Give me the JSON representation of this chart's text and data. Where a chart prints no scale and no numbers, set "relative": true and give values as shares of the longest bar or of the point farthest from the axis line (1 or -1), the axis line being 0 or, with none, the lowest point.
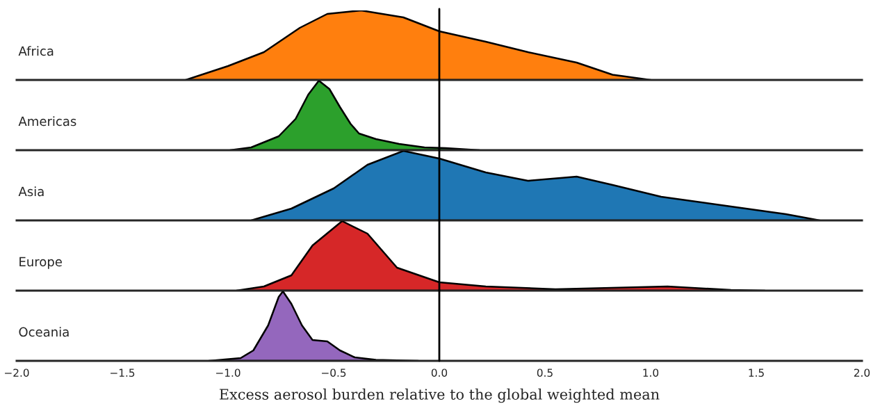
{
  "chart_data": [
    {
      "type": "area",
      "relative": true,
      "xlim": [
        -2,
        2
      ],
      "grid": false,
      "ref_lines": [
        {
          "axis": "x",
          "value": 0,
          "color": "#000000"
        }
      ],
      "series": [
        {
          "name": "Africa",
          "color": "#ff7f0e",
          "x": [
            -1.2,
            -1.0,
            -0.83,
            -0.66,
            -0.53,
            -0.37,
            -0.17,
            0,
            0.22,
            0.42,
            0.65,
            0.82,
            1.0
          ],
          "values": [
            0,
            0.2,
            0.4,
            0.75,
            0.95,
            1,
            0.9,
            0.7,
            0.55,
            0.4,
            0.25,
            0.075,
            0
          ]
        }
      ]
    },
    {
      "type": "area",
      "relative": true,
      "xlim": [
        -2,
        2
      ],
      "grid": false,
      "ref_lines": [
        {
          "axis": "x",
          "value": 0,
          "color": "#000000"
        }
      ],
      "series": [
        {
          "name": "Americas",
          "color": "#2ca02c",
          "x": [
            -0.99,
            -0.89,
            -0.76,
            -0.68,
            -0.62,
            -0.57,
            -0.52,
            -0.47,
            -0.42,
            -0.38,
            -0.3,
            -0.19,
            -0.07,
            0.03,
            0.19
          ],
          "values": [
            0,
            0.04,
            0.2,
            0.45,
            0.8,
            1,
            0.88,
            0.62,
            0.38,
            0.24,
            0.16,
            0.09,
            0.04,
            0.03,
            0
          ]
        }
      ]
    },
    {
      "type": "area",
      "relative": true,
      "xlim": [
        -2,
        2
      ],
      "grid": false,
      "ref_lines": [
        {
          "axis": "x",
          "value": 0,
          "color": "#000000"
        }
      ],
      "series": [
        {
          "name": "Asia",
          "color": "#1f77b4",
          "x": [
            -0.89,
            -0.7,
            -0.5,
            -0.34,
            -0.17,
            0,
            0.22,
            0.42,
            0.65,
            0.82,
            1.05,
            1.38,
            1.64,
            1.8
          ],
          "values": [
            0,
            0.17,
            0.46,
            0.8,
            1,
            0.89,
            0.69,
            0.57,
            0.63,
            0.51,
            0.34,
            0.2,
            0.09,
            0
          ]
        }
      ]
    },
    {
      "type": "area",
      "relative": true,
      "xlim": [
        -2,
        2
      ],
      "grid": false,
      "ref_lines": [
        {
          "axis": "x",
          "value": 0,
          "color": "#000000"
        }
      ],
      "series": [
        {
          "name": "Europe",
          "color": "#d62728",
          "x": [
            -0.96,
            -0.83,
            -0.7,
            -0.6,
            -0.46,
            -0.34,
            -0.2,
            0,
            0.22,
            0.55,
            1.08,
            1.38,
            1.54
          ],
          "values": [
            0,
            0.06,
            0.22,
            0.65,
            1,
            0.82,
            0.33,
            0.12,
            0.06,
            0.02,
            0.06,
            0.01,
            0
          ]
        }
      ]
    },
    {
      "type": "area",
      "relative": true,
      "xlim": [
        -2,
        2
      ],
      "grid": false,
      "xlabel": "Excess aerosol burden relative to the global weighted mean",
      "xticks": [
        {
          "value": -2,
          "label": "−2.0"
        },
        {
          "value": -1.5,
          "label": "−1.5"
        },
        {
          "value": -1,
          "label": "−1.0"
        },
        {
          "value": -0.5,
          "label": "−0.5"
        },
        {
          "value": 0,
          "label": "0.0"
        },
        {
          "value": 0.5,
          "label": "0.5"
        },
        {
          "value": 1,
          "label": "1.0"
        },
        {
          "value": 1.5,
          "label": "1.5"
        },
        {
          "value": 2,
          "label": "2.0"
        }
      ],
      "ref_lines": [
        {
          "axis": "x",
          "value": 0,
          "color": "#000000"
        }
      ],
      "series": [
        {
          "name": "Oceania",
          "color": "#9467bd",
          "x": [
            -1.09,
            -0.94,
            -0.88,
            -0.81,
            -0.76,
            -0.74,
            -0.7,
            -0.65,
            -0.6,
            -0.53,
            -0.47,
            -0.4,
            -0.3,
            -0.1
          ],
          "values": [
            0,
            0.04,
            0.15,
            0.51,
            0.92,
            1,
            0.82,
            0.51,
            0.3,
            0.28,
            0.15,
            0.05,
            0.015,
            0
          ]
        }
      ]
    }
  ]
}
